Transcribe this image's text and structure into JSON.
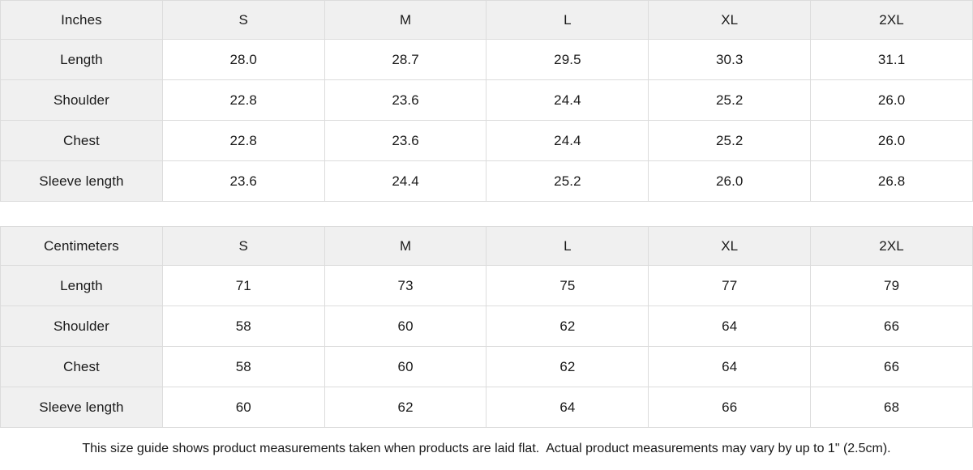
{
  "tables": [
    {
      "id": "inches",
      "unit_header": "Inches",
      "size_headers": [
        "S",
        "M",
        "L",
        "XL",
        "2XL"
      ],
      "rows": [
        {
          "label": "Length",
          "values": [
            "28.0",
            "28.7",
            "29.5",
            "30.3",
            "31.1"
          ]
        },
        {
          "label": "Shoulder",
          "values": [
            "22.8",
            "23.6",
            "24.4",
            "25.2",
            "26.0"
          ]
        },
        {
          "label": "Chest",
          "values": [
            "22.8",
            "23.6",
            "24.4",
            "25.2",
            "26.0"
          ]
        },
        {
          "label": "Sleeve length",
          "values": [
            "23.6",
            "24.4",
            "25.2",
            "26.0",
            "26.8"
          ]
        }
      ]
    },
    {
      "id": "centimeters",
      "unit_header": "Centimeters",
      "size_headers": [
        "S",
        "M",
        "L",
        "XL",
        "2XL"
      ],
      "rows": [
        {
          "label": "Length",
          "values": [
            "71",
            "73",
            "75",
            "77",
            "79"
          ]
        },
        {
          "label": "Shoulder",
          "values": [
            "58",
            "60",
            "62",
            "64",
            "66"
          ]
        },
        {
          "label": "Chest",
          "values": [
            "58",
            "60",
            "62",
            "64",
            "66"
          ]
        },
        {
          "label": "Sleeve length",
          "values": [
            "60",
            "62",
            "64",
            "66",
            "68"
          ]
        }
      ]
    }
  ],
  "footer_note": "This size guide shows product measurements taken when products are laid flat.  Actual product measurements may vary by up to 1\" (2.5cm).",
  "colors": {
    "header_bg": "#f0f0f0",
    "cell_bg": "#ffffff",
    "border": "#dcdcdc",
    "text": "#1a1a1a"
  }
}
